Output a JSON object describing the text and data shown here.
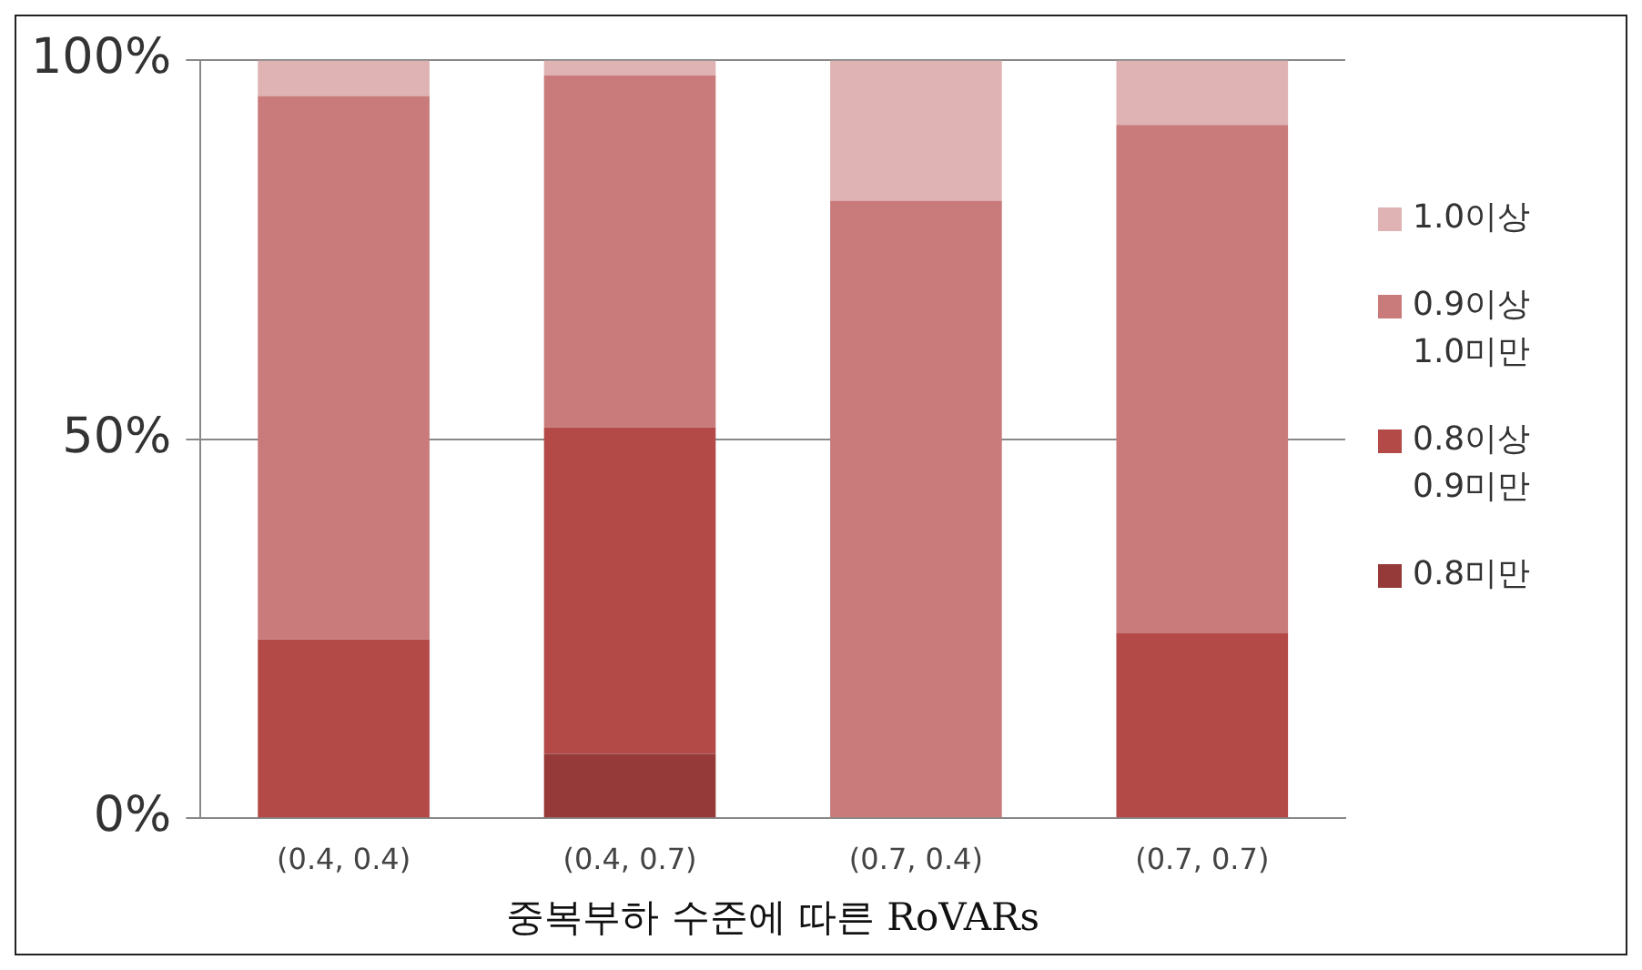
{
  "chart_data": {
    "type": "bar",
    "stacked": true,
    "xlabel": "중복부하 수준에 따른 RoVARs",
    "categories": [
      "(0.4, 0.4)",
      "(0.4, 0.7)",
      "(0.7, 0.4)",
      "(0.7, 0.7)"
    ],
    "series": [
      {
        "name": "0.8미만",
        "color": "#953a38",
        "values": [
          0,
          8.5,
          0,
          0
        ]
      },
      {
        "name": "0.8이상 0.9미만",
        "color": "#b34a48",
        "values": [
          23.6,
          43.1,
          0,
          24.4
        ]
      },
      {
        "name": "0.9이상 1.0미만",
        "color": "#c97b7b",
        "values": [
          71.7,
          46.4,
          81.5,
          67.1
        ]
      },
      {
        "name": "1.0이상",
        "color": "#dfb3b3",
        "values": [
          4.7,
          2.0,
          18.5,
          8.5
        ]
      }
    ],
    "ylim": [
      0,
      100
    ],
    "yticks": [
      {
        "value": 0,
        "label": "0%"
      },
      {
        "value": 50,
        "label": "50%"
      },
      {
        "value": 100,
        "label": "100%"
      }
    ],
    "grid": "y",
    "legend": "right"
  }
}
